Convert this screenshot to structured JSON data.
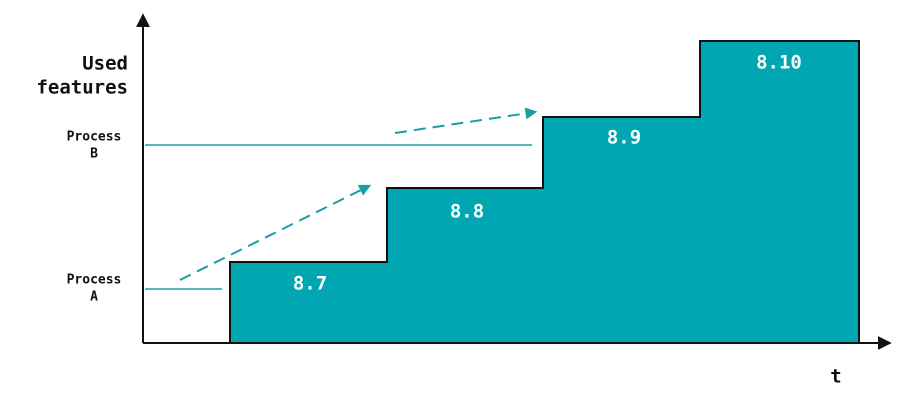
{
  "axes": {
    "y_label": [
      "Used",
      "features"
    ],
    "x_label": "t"
  },
  "processes": [
    {
      "lines": [
        "Process",
        "B"
      ]
    },
    {
      "lines": [
        "Process",
        "A"
      ]
    }
  ],
  "steps": [
    {
      "label": "8.7"
    },
    {
      "label": "8.8"
    },
    {
      "label": "8.9"
    },
    {
      "label": "8.10"
    }
  ]
}
